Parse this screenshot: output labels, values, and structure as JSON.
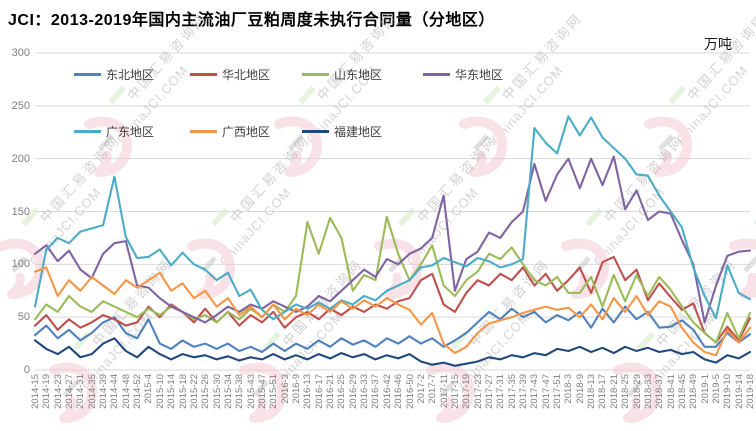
{
  "title": "JCI：2013-2019年国内主流油厂豆粕周度未执行合同量（分地区）",
  "unit_label": "万吨",
  "watermark": {
    "text_cn": "中国汇易咨询网",
    "text_en": "ChinaJCI.COM",
    "logo_pink": "#f5c6d0",
    "dash_green": "#cfe9c0"
  },
  "chart_data": {
    "type": "line",
    "title": "JCI：2013-2019年国内主流油厂豆粕周度未执行合同量（分地区）",
    "ylabel": "万吨",
    "ylim": [
      0,
      300
    ],
    "y_ticks": [
      0,
      50,
      100,
      150,
      200,
      250,
      300
    ],
    "grid": true,
    "legend_position": "top-left-inside-two-rows",
    "grid_color": "#d9d9d9",
    "axis_label_color": "#808080",
    "categories": [
      "2014-15",
      "2014-19",
      "2014-23",
      "2014-27",
      "2014-31",
      "2014-35",
      "2014-39",
      "2014-44",
      "2014-48",
      "2014-52",
      "2015-4",
      "2015-10",
      "2015-14",
      "2015-18",
      "2015-22",
      "2015-26",
      "2015-30",
      "2015-34",
      "2015-38",
      "2015-43",
      "2015-47",
      "2015-51",
      "2016-3",
      "2016-9",
      "2016-13",
      "2016-17",
      "2016-21",
      "2016-25",
      "2016-29",
      "2016-33",
      "2016-37",
      "2016-42",
      "2016-46",
      "2016-50",
      "2017-2",
      "2017-7",
      "2017-11",
      "2017-15",
      "2017-19",
      "2017-23",
      "2017-27",
      "2017-31",
      "2017-35",
      "2017-39",
      "2017-43",
      "2017-47",
      "2017-51",
      "2018-3",
      "2018-9",
      "2018-13",
      "2018-17",
      "2018-21",
      "2018-25",
      "2018-29",
      "2018-33",
      "2018-37",
      "2018-41",
      "2018-45",
      "2018-49",
      "2019-1",
      "2019-5",
      "2019-10",
      "2019-14",
      "2019-18"
    ],
    "series": [
      {
        "name": "东北地区",
        "color": "#4F81BD",
        "values": [
          33,
          42,
          30,
          38,
          28,
          35,
          45,
          50,
          35,
          30,
          48,
          25,
          20,
          28,
          22,
          25,
          20,
          25,
          18,
          22,
          17,
          25,
          18,
          25,
          20,
          28,
          22,
          30,
          24,
          28,
          22,
          30,
          25,
          32,
          25,
          30,
          22,
          28,
          35,
          45,
          55,
          48,
          58,
          50,
          55,
          45,
          52,
          47,
          55,
          40,
          58,
          45,
          60,
          48,
          55,
          40,
          41,
          47,
          38,
          22,
          22,
          35,
          26,
          34
        ]
      },
      {
        "name": "华北地区",
        "color": "#C0504D",
        "values": [
          42,
          52,
          38,
          48,
          40,
          45,
          52,
          48,
          42,
          45,
          60,
          50,
          62,
          55,
          45,
          58,
          45,
          55,
          42,
          52,
          45,
          55,
          40,
          50,
          55,
          48,
          58,
          52,
          60,
          55,
          62,
          58,
          65,
          68,
          85,
          91,
          62,
          55,
          73,
          85,
          80,
          91,
          85,
          97,
          80,
          91,
          75,
          85,
          97,
          73,
          102,
          107,
          85,
          95,
          66,
          82,
          69,
          57,
          63,
          35,
          26,
          41,
          28,
          49
        ]
      },
      {
        "name": "山东地区",
        "color": "#9BBB59",
        "values": [
          48,
          62,
          55,
          70,
          60,
          55,
          65,
          60,
          55,
          50,
          58,
          52,
          60,
          55,
          48,
          52,
          45,
          55,
          48,
          58,
          50,
          62,
          55,
          70,
          140,
          110,
          144,
          125,
          75,
          90,
          85,
          145,
          110,
          85,
          100,
          118,
          80,
          70,
          85,
          93,
          110,
          105,
          116,
          100,
          85,
          80,
          88,
          73,
          73,
          88,
          60,
          90,
          65,
          90,
          70,
          88,
          76,
          60,
          45,
          35,
          26,
          54,
          30,
          54
        ]
      },
      {
        "name": "华东地区",
        "color": "#8064A2",
        "values": [
          110,
          118,
          103,
          113,
          95,
          87,
          110,
          120,
          122,
          80,
          78,
          68,
          60,
          55,
          50,
          45,
          52,
          60,
          55,
          62,
          58,
          65,
          60,
          55,
          60,
          70,
          65,
          75,
          85,
          95,
          88,
          105,
          100,
          110,
          115,
          125,
          165,
          75,
          105,
          112,
          130,
          125,
          140,
          150,
          195,
          160,
          185,
          200,
          172,
          200,
          175,
          202,
          152,
          170,
          142,
          150,
          148,
          123,
          100,
          45,
          80,
          108,
          112,
          113
        ]
      },
      {
        "name": "广东地区",
        "color": "#4BACC6",
        "values": [
          60,
          114,
          125,
          120,
          131,
          134,
          137,
          183,
          126,
          106,
          107,
          114,
          99,
          111,
          100,
          95,
          85,
          92,
          70,
          76,
          57,
          48,
          55,
          62,
          58,
          64,
          58,
          66,
          62,
          70,
          66,
          75,
          80,
          85,
          97,
          99,
          106,
          102,
          98,
          106,
          103,
          97,
          100,
          105,
          229,
          215,
          205,
          240,
          222,
          239,
          220,
          210,
          200,
          185,
          184,
          165,
          150,
          135,
          97,
          70,
          49,
          99,
          73,
          67
        ]
      },
      {
        "name": "广西地区",
        "color": "#F79646",
        "values": [
          93,
          97,
          70,
          85,
          75,
          88,
          80,
          72,
          85,
          78,
          85,
          92,
          75,
          82,
          68,
          75,
          60,
          68,
          52,
          60,
          50,
          62,
          48,
          58,
          52,
          62,
          55,
          65,
          58,
          66,
          60,
          68,
          62,
          57,
          43,
          54,
          25,
          16,
          22,
          35,
          44,
          47,
          50,
          54,
          57,
          60,
          57,
          59,
          50,
          62,
          48,
          68,
          55,
          70,
          52,
          65,
          60,
          40,
          26,
          17,
          14,
          38,
          26,
          40
        ]
      },
      {
        "name": "福建地区",
        "color": "#1F497D",
        "values": [
          28,
          20,
          15,
          22,
          12,
          15,
          25,
          30,
          18,
          12,
          22,
          15,
          10,
          15,
          12,
          14,
          10,
          13,
          9,
          12,
          10,
          15,
          10,
          14,
          10,
          15,
          11,
          16,
          12,
          15,
          10,
          14,
          11,
          15,
          8,
          5,
          7,
          4,
          6,
          8,
          12,
          10,
          14,
          12,
          16,
          14,
          20,
          18,
          22,
          17,
          21,
          16,
          22,
          18,
          21,
          17,
          19,
          15,
          17,
          10,
          7,
          14,
          11,
          17
        ]
      }
    ]
  }
}
